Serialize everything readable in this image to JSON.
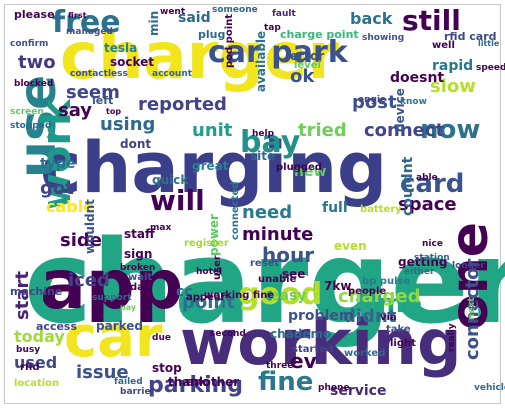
{
  "palette": {
    "yellow": "#f1e51d",
    "lime": "#a5db36",
    "green": "#4ac16d",
    "teal": "#21918c",
    "blue": "#2c728e",
    "indigo": "#3b528b",
    "purple": "#472d7b",
    "dark": "#440154",
    "border": "#c8c8c8"
  },
  "words": [
    {
      "text": "charger",
      "color": "#21a685"
    },
    {
      "text": "charging",
      "color": "#3b3f8a"
    },
    {
      "text": "charger",
      "color": "#f1e51d"
    },
    {
      "text": "app",
      "color": "#440154"
    },
    {
      "text": "working",
      "color": "#472d7b"
    },
    {
      "text": "use",
      "color": "#26828e"
    },
    {
      "text": "car",
      "color": "#f1e51d"
    },
    {
      "text": "one",
      "color": "#440154"
    },
    {
      "text": "work",
      "color": "#1f9a8a"
    },
    {
      "text": "car park",
      "color": "#3b528b"
    },
    {
      "text": "still",
      "color": "#440154"
    },
    {
      "text": "free",
      "color": "#2c728e"
    },
    {
      "text": "bay",
      "color": "#21918c"
    },
    {
      "text": "now",
      "color": "#2c728e"
    },
    {
      "text": "card",
      "color": "#3b528b"
    },
    {
      "text": "good",
      "color": "#b5de2b"
    },
    {
      "text": "time",
      "color": "#22a884"
    },
    {
      "text": "fine",
      "color": "#2a788e"
    },
    {
      "text": "parking",
      "color": "#414487"
    },
    {
      "text": "will",
      "color": "#440154"
    },
    {
      "text": "two",
      "color": "#453781"
    },
    {
      "text": "reported",
      "color": "#414487"
    },
    {
      "text": "unit",
      "color": "#1f9e89"
    },
    {
      "text": "tried",
      "color": "#6ece58"
    },
    {
      "text": "connect",
      "color": "#414487"
    },
    {
      "text": "hour",
      "color": "#3b528b"
    },
    {
      "text": "point",
      "color": "#2d708e"
    },
    {
      "text": "charged",
      "color": "#90d743"
    },
    {
      "text": "didnt",
      "color": "#31688e"
    },
    {
      "text": "start",
      "color": "#482475"
    },
    {
      "text": "iced",
      "color": "#414487"
    },
    {
      "text": "space",
      "color": "#440154"
    },
    {
      "text": "connector",
      "color": "#3b528b"
    },
    {
      "text": "using",
      "color": "#31688e"
    },
    {
      "text": "got",
      "color": "#414487"
    },
    {
      "text": "minute",
      "color": "#440154"
    },
    {
      "text": "need",
      "color": "#2a788e"
    },
    {
      "text": "ev",
      "color": "#440154"
    },
    {
      "text": "issue",
      "color": "#3b528b"
    },
    {
      "text": "service",
      "color": "#482878"
    },
    {
      "text": "back",
      "color": "#2c728e"
    },
    {
      "text": "said",
      "color": "#31688e"
    },
    {
      "text": "charge point",
      "color": "#35b779"
    },
    {
      "text": "seem",
      "color": "#414487"
    },
    {
      "text": "say",
      "color": "#440154"
    },
    {
      "text": "ok",
      "color": "#3b528b"
    },
    {
      "text": "post",
      "color": "#3b528b"
    },
    {
      "text": "slow",
      "color": "#b5de2b"
    },
    {
      "text": "rapid",
      "color": "#2a788e"
    },
    {
      "text": "type",
      "color": "#2c728e"
    },
    {
      "text": "cable",
      "color": "#fde725"
    },
    {
      "text": "side",
      "color": "#440154"
    },
    {
      "text": "today",
      "color": "#a0da39"
    },
    {
      "text": "used",
      "color": "#3e4989"
    },
    {
      "text": "power",
      "color": "#5ec962"
    },
    {
      "text": "cc",
      "color": "#31688e"
    },
    {
      "text": "easy",
      "color": "#6ece58"
    },
    {
      "text": "problem",
      "color": "#3b528b"
    },
    {
      "text": "full",
      "color": "#2a788e"
    },
    {
      "text": "chademo",
      "color": "#31688e"
    },
    {
      "text": "parked",
      "color": "#3b528b"
    },
    {
      "text": "getting",
      "color": "#440154"
    },
    {
      "text": "fault",
      "color": "#482475"
    },
    {
      "text": "device",
      "color": "#3b528b"
    },
    {
      "text": "plug",
      "color": "#31688e"
    },
    {
      "text": "socket",
      "color": "#440154"
    },
    {
      "text": "tesla",
      "color": "#26828e"
    },
    {
      "text": "min",
      "color": "#31688e"
    },
    {
      "text": "error",
      "color": "#3b528b"
    },
    {
      "text": "available",
      "color": "#2c728e"
    },
    {
      "text": "doesnt",
      "color": "#440154"
    },
    {
      "text": "couldnt",
      "color": "#31688e"
    },
    {
      "text": "new",
      "color": "#5ec962"
    },
    {
      "text": "rfid card",
      "color": "#3e4989"
    },
    {
      "text": "well",
      "color": "#440154"
    },
    {
      "text": "please",
      "color": "#440154"
    },
    {
      "text": "access",
      "color": "#414487"
    },
    {
      "text": "dont",
      "color": "#414487"
    },
    {
      "text": "left",
      "color": "#3b528b"
    },
    {
      "text": "quick",
      "color": "#2c728e"
    },
    {
      "text": "great",
      "color": "#26828e"
    },
    {
      "text": "staff",
      "color": "#440154"
    },
    {
      "text": "sign",
      "color": "#440154"
    },
    {
      "text": "machine",
      "color": "#414487"
    },
    {
      "text": "wouldnt",
      "color": "#3b528b"
    },
    {
      "text": "site",
      "color": "#31688e"
    },
    {
      "text": "plugged",
      "color": "#440154"
    },
    {
      "text": "bp pulse",
      "color": "#2a788e"
    },
    {
      "text": "take",
      "color": "#3b528b"
    },
    {
      "text": "light",
      "color": "#440154"
    },
    {
      "text": "via",
      "color": "#440154"
    },
    {
      "text": "stop",
      "color": "#440154"
    },
    {
      "text": "thank",
      "color": "#440154"
    },
    {
      "text": "another",
      "color": "#440154"
    },
    {
      "text": "7kw",
      "color": "#440154"
    },
    {
      "text": "even",
      "color": "#b5de2b"
    },
    {
      "text": "see",
      "color": "#440154"
    },
    {
      "text": "unable",
      "color": "#440154"
    },
    {
      "text": "reset",
      "color": "#3b528b"
    },
    {
      "text": "started",
      "color": "#414487"
    },
    {
      "text": "rfid",
      "color": "#440154"
    },
    {
      "text": "location",
      "color": "#b5de2b"
    },
    {
      "text": "worked",
      "color": "#31688e"
    },
    {
      "text": "people",
      "color": "#440154"
    },
    {
      "text": "register",
      "color": "#a0da39"
    },
    {
      "text": "next",
      "color": "#6ece58"
    },
    {
      "text": "connected",
      "color": "#2a788e"
    },
    {
      "text": "screen",
      "color": "#5ec962"
    },
    {
      "text": "stopped",
      "color": "#31688e"
    },
    {
      "text": "blocked",
      "color": "#440154"
    },
    {
      "text": "contactless",
      "color": "#3b528b"
    },
    {
      "text": "account",
      "color": "#31688e"
    },
    {
      "text": "level",
      "color": "#5ec962"
    },
    {
      "text": "engie",
      "color": "#414487"
    },
    {
      "text": "know",
      "color": "#2a788e"
    },
    {
      "text": "little",
      "color": "#31688e"
    },
    {
      "text": "speed",
      "color": "#440154"
    },
    {
      "text": "able",
      "color": "#440154"
    },
    {
      "text": "nice",
      "color": "#440154"
    },
    {
      "text": "station",
      "color": "#31688e"
    },
    {
      "text": "longer",
      "color": "#414487"
    },
    {
      "text": "really",
      "color": "#440154"
    },
    {
      "text": "vehicle",
      "color": "#31688e"
    },
    {
      "text": "phone",
      "color": "#440154"
    },
    {
      "text": "help",
      "color": "#440154"
    },
    {
      "text": "showing",
      "color": "#3b528b"
    },
    {
      "text": "pod point",
      "color": "#440154"
    },
    {
      "text": "first",
      "color": "#440154"
    },
    {
      "text": "managed",
      "color": "#3b528b"
    },
    {
      "text": "confirm",
      "color": "#3b528b"
    },
    {
      "text": "working fine",
      "color": "#440154"
    },
    {
      "text": "broken",
      "color": "#440154"
    },
    {
      "text": "support",
      "color": "#31688e"
    },
    {
      "text": "busy",
      "color": "#440154"
    },
    {
      "text": "failed",
      "color": "#31688e"
    },
    {
      "text": "appear",
      "color": "#440154"
    },
    {
      "text": "second",
      "color": "#440154"
    },
    {
      "text": "barrier",
      "color": "#414487"
    },
    {
      "text": "due",
      "color": "#440154"
    },
    {
      "text": "three",
      "color": "#440154"
    },
    {
      "text": "hotel",
      "color": "#440154"
    },
    {
      "text": "user",
      "color": "#440154"
    },
    {
      "text": "day",
      "color": "#440154"
    },
    {
      "text": "wait",
      "color": "#3b528b"
    },
    {
      "text": "pay",
      "color": "#6ece58"
    },
    {
      "text": "max",
      "color": "#440154"
    },
    {
      "text": "battery",
      "color": "#b5de2b"
    },
    {
      "text": "either",
      "color": "#31688e"
    },
    {
      "text": "top",
      "color": "#440154"
    },
    {
      "text": "tap",
      "color": "#440154"
    },
    {
      "text": "went",
      "color": "#440154"
    },
    {
      "text": "someone",
      "color": "#31688e"
    },
    {
      "text": "try",
      "color": "#440154"
    },
    {
      "text": "leaf",
      "color": "#440154"
    }
  ]
}
